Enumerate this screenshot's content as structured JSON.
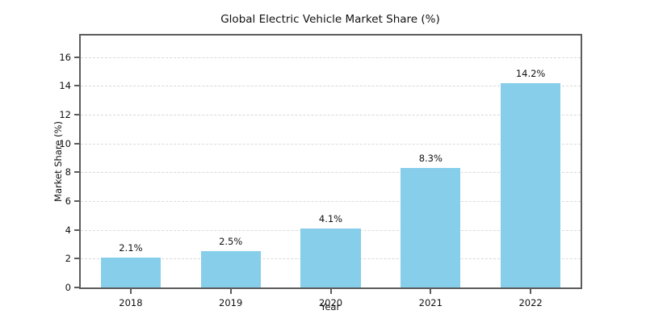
{
  "chart_data": {
    "type": "bar",
    "title": "Global Electric Vehicle Market Share (%)",
    "xlabel": "Year",
    "ylabel": "Market Share (%)",
    "categories": [
      "2018",
      "2019",
      "2020",
      "2021",
      "2022"
    ],
    "values": [
      2.1,
      2.5,
      4.1,
      8.3,
      14.2
    ],
    "bar_labels": [
      "2.1%",
      "2.5%",
      "4.1%",
      "8.3%",
      "14.2%"
    ],
    "yticks": [
      0,
      2,
      4,
      6,
      8,
      10,
      12,
      14,
      16
    ],
    "ylim": [
      0,
      17.5
    ],
    "grid": "horizontal dashed",
    "legend": "none",
    "bar_color": "#87CEEB",
    "grid_color": "#D9D9D9",
    "spine_color": "#5C5C5C",
    "bar_width_fraction": 0.6
  }
}
